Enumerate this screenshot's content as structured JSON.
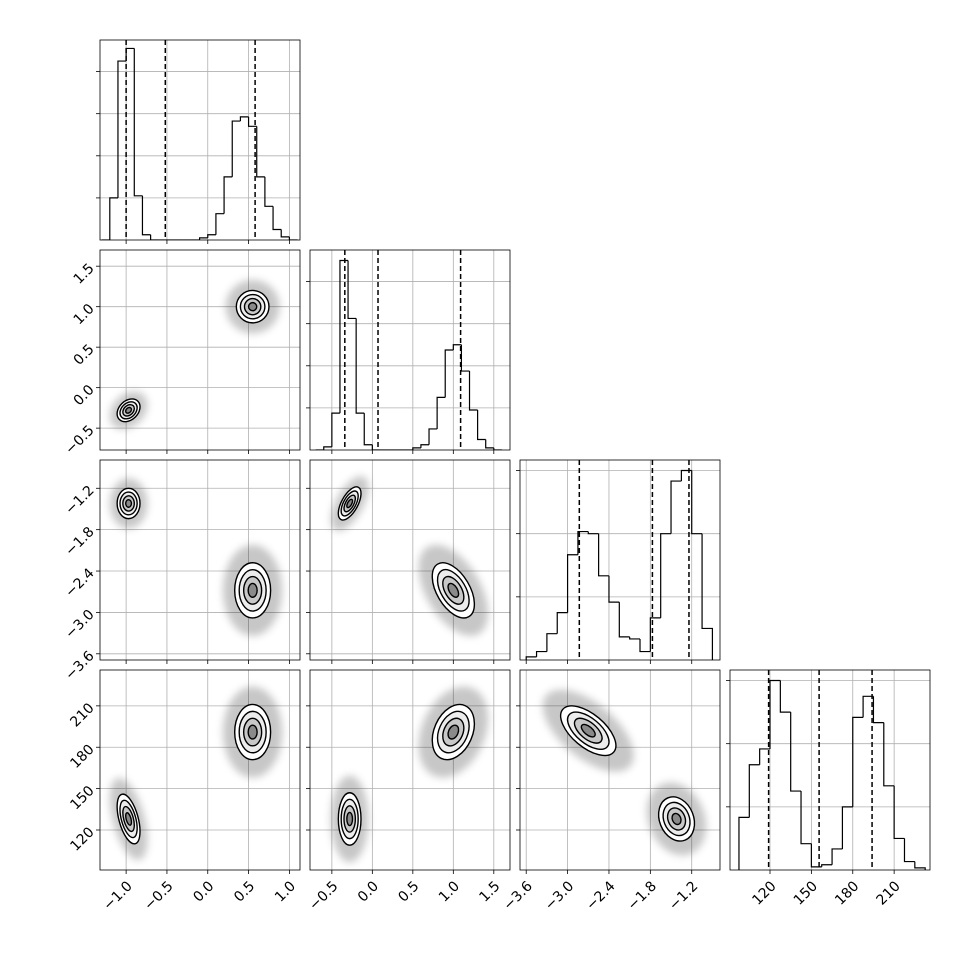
{
  "chart_data": {
    "type": "corner",
    "parameters": [
      {
        "xlim": [
          -1.32,
          1.13
        ],
        "ticks": [
          {
            "value": -1.0,
            "label": "−1.0"
          },
          {
            "value": -0.5,
            "label": "−0.5"
          },
          {
            "value": 0.0,
            "label": "0.0"
          },
          {
            "value": 0.5,
            "label": "0.5"
          },
          {
            "value": 1.0,
            "label": "1.0"
          }
        ]
      },
      {
        "xlim": [
          -0.77,
          1.7
        ],
        "ticks": [
          {
            "value": -0.5,
            "label": "−0.5"
          },
          {
            "value": 0.0,
            "label": "0.0"
          },
          {
            "value": 0.5,
            "label": "0.5"
          },
          {
            "value": 1.0,
            "label": "1.0"
          },
          {
            "value": 1.5,
            "label": "1.5"
          }
        ]
      },
      {
        "xlim": [
          -3.69,
          -0.79
        ],
        "ticks": [
          {
            "value": -3.6,
            "label": "−3.6"
          },
          {
            "value": -3.0,
            "label": "−3.0"
          },
          {
            "value": -2.4,
            "label": "−2.4"
          },
          {
            "value": -1.8,
            "label": "−1.8"
          },
          {
            "value": -1.2,
            "label": "−1.2"
          }
        ]
      },
      {
        "xlim": [
          91,
          236
        ],
        "ticks": [
          120,
          150,
          180,
          210
        ]
      }
    ],
    "histograms": [
      {
        "bins": [
          -1.3,
          -1.2,
          -1.1,
          -1.0,
          -0.9,
          -0.8,
          -0.7,
          -0.6,
          -0.5,
          -0.4,
          -0.3,
          -0.2,
          -0.1,
          0.0,
          0.1,
          0.2,
          0.3,
          0.4,
          0.5,
          0.6,
          0.7,
          0.8,
          0.9,
          1.0,
          1.1
        ],
        "counts": [
          0,
          40,
          170,
          182,
          42,
          5,
          0,
          0,
          0,
          0,
          0,
          0,
          2,
          5,
          25,
          60,
          113,
          117,
          108,
          60,
          32,
          10,
          3,
          0
        ],
        "ylim": [
          0,
          190
        ],
        "yticks": [
          40,
          80,
          120,
          160
        ],
        "quantiles": [
          -1.0,
          -0.52,
          0.58
        ]
      },
      {
        "bins": [
          -0.7,
          -0.6,
          -0.5,
          -0.4,
          -0.3,
          -0.2,
          -0.1,
          0.0,
          0.1,
          0.2,
          0.3,
          0.4,
          0.5,
          0.6,
          0.7,
          0.8,
          0.9,
          1.0,
          1.1,
          1.2,
          1.3,
          1.4,
          1.5,
          1.6
        ],
        "counts": [
          0,
          3,
          35,
          180,
          125,
          35,
          5,
          0,
          0,
          0,
          0,
          0,
          2,
          5,
          20,
          50,
          95,
          100,
          75,
          38,
          10,
          2,
          0
        ],
        "ylim": [
          0,
          190
        ],
        "yticks": [
          40,
          80,
          120,
          160
        ],
        "quantiles": [
          -0.34,
          0.07,
          1.09
        ]
      },
      {
        "bins": [
          -3.6,
          -3.45,
          -3.3,
          -3.15,
          -3.0,
          -2.85,
          -2.7,
          -2.55,
          -2.4,
          -2.25,
          -2.1,
          -1.95,
          -1.8,
          -1.65,
          -1.5,
          -1.35,
          -1.2,
          -1.05,
          -0.9
        ],
        "counts": [
          3,
          8,
          25,
          45,
          100,
          122,
          120,
          80,
          55,
          22,
          20,
          8,
          40,
          120,
          170,
          180,
          120,
          30
        ],
        "ylim": [
          0,
          190
        ],
        "yticks": [
          60,
          120,
          180
        ],
        "quantiles": [
          -2.83,
          -1.77,
          -1.24
        ]
      },
      {
        "bins": [
          97.5,
          105,
          112.5,
          120,
          127.5,
          135,
          142.5,
          150,
          157.5,
          165,
          172.5,
          180,
          187.5,
          195,
          202.5,
          210,
          217.5,
          225,
          232.5
        ],
        "counts": [
          50,
          100,
          115,
          180,
          150,
          75,
          25,
          3,
          5,
          20,
          60,
          145,
          165,
          140,
          80,
          30,
          8,
          2
        ],
        "ylim": [
          0,
          190
        ],
        "yticks": [
          60,
          120,
          180
        ],
        "quantiles": [
          119,
          155.6,
          194
        ]
      }
    ],
    "panels_2d": [
      [
        {
          "clusters": [
            {
              "center": [
                -0.97,
                -0.28
              ],
              "sigma": [
                0.07,
                0.07
              ],
              "rho": 0.3
            },
            {
              "center": [
                0.55,
                1.0
              ],
              "sigma": [
                0.1,
                0.1
              ],
              "rho": 0
            }
          ]
        }
      ],
      [
        {
          "clusters": [
            {
              "center": [
                -0.97,
                -1.42
              ],
              "sigma": [
                0.07,
                0.11
              ],
              "rho": 0
            },
            {
              "center": [
                0.55,
                -2.68
              ],
              "sigma": [
                0.11,
                0.2
              ],
              "rho": 0
            }
          ]
        },
        {
          "clusters": [
            {
              "center": [
                -0.28,
                -1.42
              ],
              "sigma": [
                0.07,
                0.12
              ],
              "rho": 0.6
            },
            {
              "center": [
                1.0,
                -2.68
              ],
              "sigma": [
                0.13,
                0.2
              ],
              "rho": -0.5
            }
          ]
        }
      ],
      [
        {
          "clusters": [
            {
              "center": [
                -0.97,
                128
              ],
              "sigma": [
                0.07,
                9
              ],
              "rho": -0.5
            },
            {
              "center": [
                0.55,
                191
              ],
              "sigma": [
                0.11,
                10
              ],
              "rho": 0
            }
          ]
        },
        {
          "clusters": [
            {
              "center": [
                -0.28,
                128
              ],
              "sigma": [
                0.07,
                9.5
              ],
              "rho": 0
            },
            {
              "center": [
                1.0,
                191
              ],
              "sigma": [
                0.13,
                10
              ],
              "rho": 0.3
            }
          ]
        },
        {
          "clusters": [
            {
              "center": [
                -1.42,
                128
              ],
              "sigma": [
                0.13,
                8
              ],
              "rho": -0.2
            },
            {
              "center": [
                -2.7,
                192
              ],
              "sigma": [
                0.2,
                9
              ],
              "rho": -0.6
            }
          ]
        }
      ]
    ]
  }
}
